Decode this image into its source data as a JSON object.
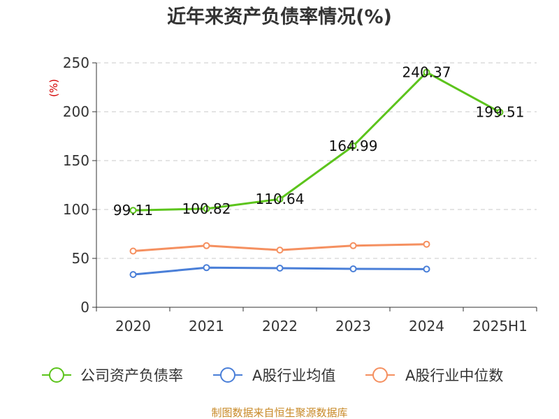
{
  "chart_data": {
    "type": "line",
    "title": "近年来资产负债率情况(%)",
    "ylabel": "(%)",
    "xlabel": "",
    "categories": [
      "2020",
      "2021",
      "2022",
      "2023",
      "2024",
      "2025H1"
    ],
    "ylim": [
      0,
      250
    ],
    "yticks": [
      0,
      50,
      100,
      150,
      200,
      250
    ],
    "grid": "horizontal-dashed",
    "legend_position": "bottom",
    "series": [
      {
        "name": "公司资产负债率",
        "color": "#5cc41c",
        "values": [
          99.11,
          100.82,
          110.64,
          164.99,
          240.37,
          199.51
        ],
        "labels": [
          "99.11",
          "100.82",
          "110.64",
          "164.99",
          "240.37",
          "199.51"
        ]
      },
      {
        "name": "A股行业均值",
        "color": "#4a7fd8",
        "values": [
          33.5,
          40.5,
          40.0,
          39.3,
          39.0,
          null
        ]
      },
      {
        "name": "A股行业中位数",
        "color": "#f59060",
        "values": [
          57.5,
          63.0,
          58.5,
          63.0,
          64.5,
          null
        ]
      }
    ]
  },
  "footer": {
    "source": "制图数据来自恒生聚源数据库"
  }
}
